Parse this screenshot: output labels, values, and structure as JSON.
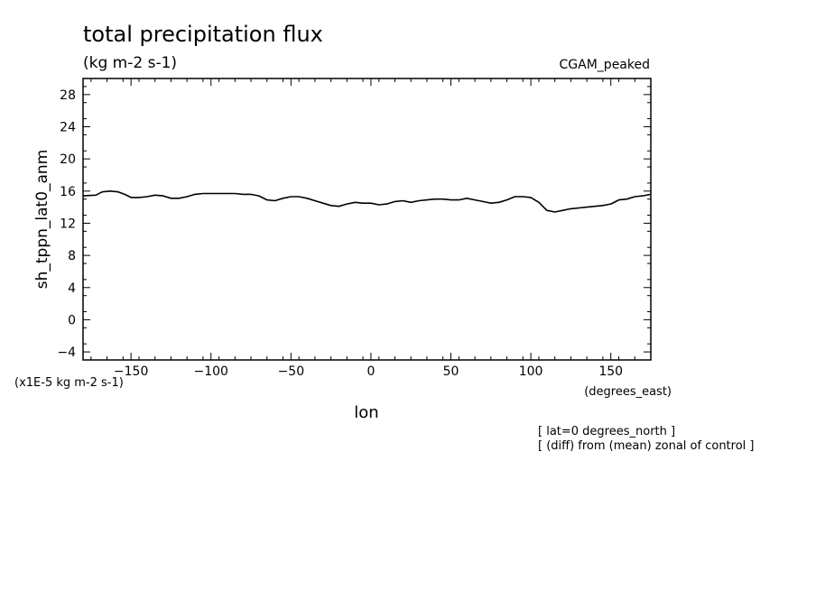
{
  "chart_data": {
    "type": "line",
    "title": "total precipitation flux",
    "units_label": "(kg m-2 s-1)",
    "run_label": "CGAM_peaked",
    "xlabel": "lon",
    "x_units": "(degrees_east)",
    "ylabel": "sh_tppn_lat0_anm",
    "y_scale_note": "(x1E-5 kg m-2 s-1)",
    "footnotes": [
      "[ lat=0 degrees_north ]",
      "[ (diff) from (mean) zonal of control ]"
    ],
    "xlim": [
      -180,
      175
    ],
    "ylim": [
      -5,
      30
    ],
    "xticks": [
      -150,
      -100,
      -50,
      0,
      50,
      100,
      150
    ],
    "yticks": [
      -4,
      0,
      4,
      8,
      12,
      16,
      20,
      24,
      28
    ],
    "grid": false,
    "series": [
      {
        "x": [
          -180,
          -172,
          -168,
          -163,
          -158,
          -154,
          -150,
          -145,
          -140,
          -135,
          -130,
          -125,
          -120,
          -115,
          -110,
          -105,
          -100,
          -95,
          -90,
          -85,
          -80,
          -75,
          -70,
          -65,
          -60,
          -55,
          -50,
          -45,
          -40,
          -35,
          -30,
          -25,
          -20,
          -15,
          -10,
          -5,
          0,
          5,
          10,
          15,
          20,
          25,
          30,
          35,
          40,
          45,
          50,
          55,
          60,
          65,
          70,
          75,
          80,
          85,
          90,
          95,
          100,
          105,
          110,
          115,
          120,
          125,
          130,
          135,
          140,
          145,
          150,
          155,
          160,
          165,
          170,
          175
        ],
        "y": [
          15.4,
          15.5,
          15.9,
          16.0,
          15.9,
          15.6,
          15.2,
          15.2,
          15.3,
          15.5,
          15.4,
          15.1,
          15.1,
          15.3,
          15.6,
          15.7,
          15.7,
          15.7,
          15.7,
          15.7,
          15.6,
          15.6,
          15.4,
          14.9,
          14.8,
          15.1,
          15.3,
          15.3,
          15.1,
          14.8,
          14.5,
          14.2,
          14.1,
          14.4,
          14.6,
          14.5,
          14.5,
          14.3,
          14.4,
          14.7,
          14.8,
          14.6,
          14.8,
          14.9,
          15.0,
          15.0,
          14.9,
          14.9,
          15.1,
          14.9,
          14.7,
          14.5,
          14.6,
          14.9,
          15.3,
          15.3,
          15.2,
          14.6,
          13.6,
          13.4,
          13.6,
          13.8,
          13.9,
          14.0,
          14.1,
          14.2,
          14.4,
          14.9,
          15.0,
          15.3,
          15.4,
          15.6
        ]
      }
    ]
  }
}
